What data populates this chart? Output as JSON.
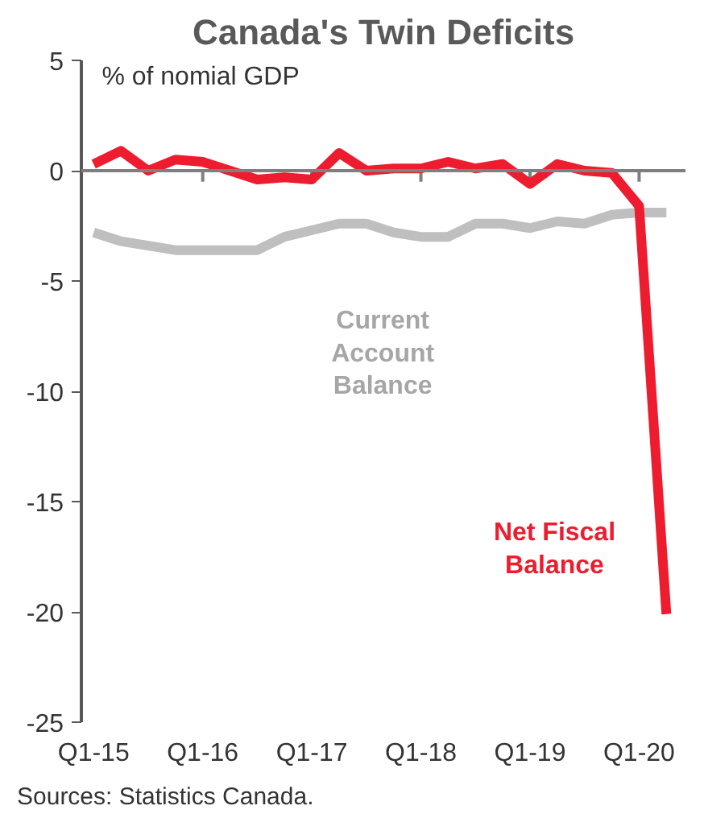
{
  "chart_data": {
    "type": "line",
    "title": "Canada's Twin Deficits",
    "ylabel": "% of nomial GDP",
    "categories": [
      "Q1-15",
      null,
      null,
      null,
      "Q1-16",
      null,
      null,
      null,
      "Q1-17",
      null,
      null,
      null,
      "Q1-18",
      null,
      null,
      null,
      "Q1-19",
      null,
      null,
      null,
      "Q1-20",
      null
    ],
    "series": [
      {
        "name": "Current Account Balance",
        "color": "#bfbfbf",
        "values": [
          -2.8,
          -3.2,
          -3.4,
          -3.6,
          -3.6,
          -3.6,
          -3.6,
          -3.0,
          -2.7,
          -2.4,
          -2.4,
          -2.8,
          -3.0,
          -3.0,
          -2.4,
          -2.4,
          -2.6,
          -2.3,
          -2.4,
          -2.0,
          -1.9,
          -1.9
        ]
      },
      {
        "name": "Net Fiscal Balance",
        "color": "#ed1c2e",
        "values": [
          0.3,
          0.9,
          0.0,
          0.5,
          0.4,
          0.0,
          -0.4,
          -0.3,
          -0.4,
          0.8,
          0.0,
          0.1,
          0.1,
          0.4,
          0.1,
          0.3,
          -0.6,
          0.3,
          0.0,
          -0.1,
          -1.6,
          -20.1
        ]
      }
    ],
    "ylim": [
      -25,
      5
    ],
    "yticks": [
      -25,
      -20,
      -15,
      -10,
      -5,
      0,
      5
    ],
    "ref_lines": [
      {
        "axis": "y",
        "value": 0,
        "color": "#7f7f7f"
      }
    ],
    "grid": false,
    "annotations": [
      "Sources: Statistics Canada."
    ]
  }
}
